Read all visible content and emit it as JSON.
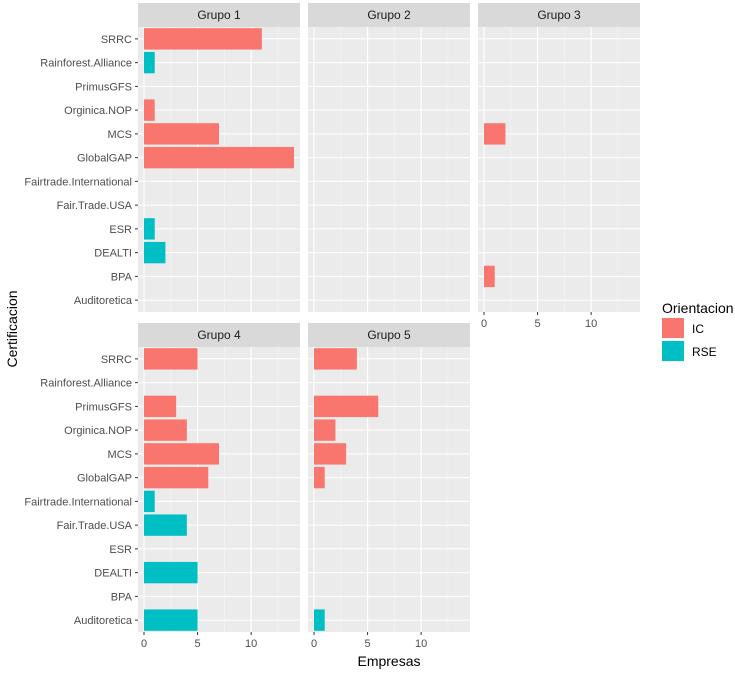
{
  "chart_data": {
    "type": "bar",
    "orientation": "horizontal",
    "facet": "Grupo",
    "categories": [
      "SRRC",
      "Rainforest.Alliance",
      "PrimusGFS",
      "Orginica.NOP",
      "MCS",
      "GlobalGAP",
      "Fairtrade.International",
      "Fair.Trade.USA",
      "ESR",
      "DEALTI",
      "BPA",
      "Auditoretica"
    ],
    "xlabel": "Empresas",
    "ylabel": "Certificacion",
    "xlim": [
      0,
      14
    ],
    "xticks": [
      "0",
      "5",
      "10"
    ],
    "xtick_values": [
      0,
      5,
      10
    ],
    "legend": {
      "title": "Orientacion",
      "position": "right",
      "items": [
        {
          "label": "IC",
          "color": "#F8766D"
        },
        {
          "label": "RSE",
          "color": "#00BFC4"
        }
      ]
    },
    "panels": [
      {
        "title": "Grupo 1",
        "bars": [
          {
            "category": "SRRC",
            "value": 11,
            "orientacion": "IC"
          },
          {
            "category": "Rainforest.Alliance",
            "value": 1,
            "orientacion": "RSE"
          },
          {
            "category": "Orginica.NOP",
            "value": 1,
            "orientacion": "IC"
          },
          {
            "category": "MCS",
            "value": 7,
            "orientacion": "IC"
          },
          {
            "category": "GlobalGAP",
            "value": 14,
            "orientacion": "IC"
          },
          {
            "category": "ESR",
            "value": 1,
            "orientacion": "RSE"
          },
          {
            "category": "DEALTI",
            "value": 2,
            "orientacion": "RSE"
          }
        ]
      },
      {
        "title": "Grupo 2",
        "bars": []
      },
      {
        "title": "Grupo 3",
        "bars": [
          {
            "category": "MCS",
            "value": 2,
            "orientacion": "IC"
          },
          {
            "category": "BPA",
            "value": 1,
            "orientacion": "IC"
          }
        ]
      },
      {
        "title": "Grupo 4",
        "bars": [
          {
            "category": "SRRC",
            "value": 5,
            "orientacion": "IC"
          },
          {
            "category": "PrimusGFS",
            "value": 3,
            "orientacion": "IC"
          },
          {
            "category": "Orginica.NOP",
            "value": 4,
            "orientacion": "IC"
          },
          {
            "category": "MCS",
            "value": 7,
            "orientacion": "IC"
          },
          {
            "category": "GlobalGAP",
            "value": 6,
            "orientacion": "IC"
          },
          {
            "category": "Fairtrade.International",
            "value": 1,
            "orientacion": "RSE"
          },
          {
            "category": "Fair.Trade.USA",
            "value": 4,
            "orientacion": "RSE"
          },
          {
            "category": "DEALTI",
            "value": 5,
            "orientacion": "RSE"
          },
          {
            "category": "Auditoretica",
            "value": 5,
            "orientacion": "RSE"
          }
        ]
      },
      {
        "title": "Grupo 5",
        "bars": [
          {
            "category": "SRRC",
            "value": 4,
            "orientacion": "IC"
          },
          {
            "category": "PrimusGFS",
            "value": 6,
            "orientacion": "IC"
          },
          {
            "category": "Orginica.NOP",
            "value": 2,
            "orientacion": "IC"
          },
          {
            "category": "MCS",
            "value": 3,
            "orientacion": "IC"
          },
          {
            "category": "GlobalGAP",
            "value": 1,
            "orientacion": "IC"
          },
          {
            "category": "Auditoretica",
            "value": 1,
            "orientacion": "RSE"
          }
        ]
      }
    ]
  }
}
